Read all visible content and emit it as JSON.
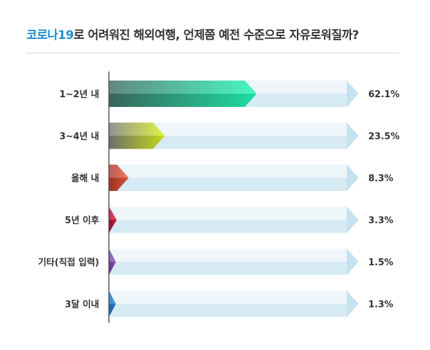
{
  "header": {
    "title_accent": "코로나19",
    "title_rest": "로 어려워진 해외여행, 언제쯤 예전 수준으로 자유로워질까?"
  },
  "chart_data": {
    "type": "bar",
    "orientation": "horizontal",
    "title": "코로나19로 어려워진 해외여행, 언제쯤 예전 수준으로 자유로워질까?",
    "categories": [
      "1~2년 내",
      "3~4년 내",
      "올해 내",
      "5년 이후",
      "기타(직접 입력)",
      "3달 이내"
    ],
    "values": [
      62.1,
      23.5,
      8.3,
      3.3,
      1.5,
      1.3
    ],
    "value_labels": [
      "62.1%",
      "23.5%",
      "8.3%",
      "3.3%",
      "1.5%",
      "1.3%"
    ],
    "unit": "%",
    "xlim": [
      0,
      100
    ],
    "grid": false,
    "bar_colors": [
      {
        "start": "#3f6f63",
        "end": "#20f5b4"
      },
      {
        "start": "#7a7a7a",
        "end": "#d8f01a"
      },
      {
        "start": "#a83a2e",
        "end": "#f45a38"
      },
      {
        "start": "#9e1030",
        "end": "#e8203c"
      },
      {
        "start": "#6a3d9a",
        "end": "#9b59b6"
      },
      {
        "start": "#1f6fb2",
        "end": "#2e86de"
      }
    ],
    "track_colors": {
      "light": "#eef6fa",
      "dark": "#d6eaf4",
      "cap": "#c6e1ef"
    }
  }
}
